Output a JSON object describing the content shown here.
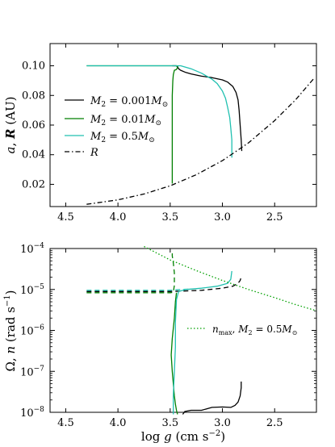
{
  "chart_data": [
    {
      "type": "line",
      "xlim": [
        4.65,
        2.1
      ],
      "ylim": [
        0.005,
        0.115
      ],
      "x_scale": "linear-reversed",
      "ylabel": "a, R (AU)",
      "x_ticks": [
        "4.5",
        "4.0",
        "3.5",
        "3.0",
        "2.5"
      ],
      "x_tick_values": [
        4.5,
        4.0,
        3.5,
        3.0,
        2.5
      ],
      "y_ticks": [
        "0.02",
        "0.04",
        "0.06",
        "0.08",
        "0.10"
      ],
      "y_tick_values": [
        0.02,
        0.04,
        0.06,
        0.08,
        0.1
      ],
      "legend_position": "center-left",
      "grid": false,
      "series": [
        {
          "name": "M2 = 0.001M⊙",
          "color": "#000000",
          "dash": "solid",
          "x": [
            3.48,
            3.46,
            3.44,
            3.43,
            3.42,
            3.4,
            3.35,
            3.3,
            3.2,
            3.1,
            3.0,
            2.95,
            2.9,
            2.87,
            2.85,
            2.84,
            2.83,
            2.82,
            2.815
          ],
          "y": [
            0.1,
            0.1,
            0.1,
            0.0995,
            0.098,
            0.097,
            0.0955,
            0.0945,
            0.093,
            0.092,
            0.0905,
            0.089,
            0.086,
            0.082,
            0.077,
            0.07,
            0.06,
            0.05,
            0.0425
          ]
        },
        {
          "name": "M2 = 0.01M⊙",
          "color": "#007f00",
          "dash": "solid",
          "x": [
            4.3,
            4.0,
            3.7,
            3.55,
            3.47,
            3.44,
            3.43,
            3.44,
            3.46,
            3.47,
            3.475,
            3.48,
            3.48,
            3.48,
            3.48
          ],
          "y": [
            0.1,
            0.1,
            0.1,
            0.1,
            0.1,
            0.1,
            0.099,
            0.0975,
            0.097,
            0.094,
            0.09,
            0.08,
            0.06,
            0.04,
            0.0205
          ]
        },
        {
          "name": "M2 = 0.5M⊙",
          "color": "#20c0b0",
          "dash": "solid",
          "x": [
            4.3,
            4.0,
            3.7,
            3.5,
            3.45,
            3.4,
            3.3,
            3.2,
            3.1,
            3.05,
            3.0,
            2.97,
            2.95,
            2.93,
            2.92,
            2.91,
            2.91
          ],
          "y": [
            0.1,
            0.1,
            0.1,
            0.1,
            0.1,
            0.1,
            0.098,
            0.095,
            0.091,
            0.088,
            0.083,
            0.078,
            0.072,
            0.065,
            0.058,
            0.05,
            0.038
          ]
        },
        {
          "name": "R",
          "color": "#000000",
          "dash": "dashdot",
          "x": [
            4.3,
            4.0,
            3.75,
            3.5,
            3.25,
            3.0,
            2.75,
            2.5,
            2.3,
            2.13
          ],
          "y": [
            0.0065,
            0.0095,
            0.0135,
            0.019,
            0.0265,
            0.036,
            0.048,
            0.063,
            0.077,
            0.091
          ]
        }
      ]
    },
    {
      "type": "line",
      "xlim": [
        4.65,
        2.1
      ],
      "ylim_log10": [
        -8.0,
        -4.0
      ],
      "y_scale": "log",
      "xlabel": "log g (cm s−2)",
      "ylabel": "Ω, n (rad s−1)",
      "x_ticks": [
        "4.5",
        "4.0",
        "3.5",
        "3.0",
        "2.5"
      ],
      "x_tick_values": [
        4.5,
        4.0,
        3.5,
        3.0,
        2.5
      ],
      "y_ticks": [
        "10−8",
        "10−7",
        "10−6",
        "10−5",
        "10−4"
      ],
      "y_tick_values_log10": [
        -8,
        -7,
        -6,
        -5,
        -4
      ],
      "legend_position": "center-right",
      "grid": false,
      "series": [
        {
          "name": "black Ω, M2 = 0.001M⊙",
          "color": "#000000",
          "dash": "solid",
          "x": [
            3.38,
            3.36,
            3.3,
            3.2,
            3.1,
            3.0,
            2.92,
            2.88,
            2.85,
            2.83,
            2.82,
            2.82
          ],
          "y_log10": [
            -8.05,
            -7.98,
            -7.95,
            -7.95,
            -7.88,
            -7.87,
            -7.88,
            -7.83,
            -7.75,
            -7.6,
            -7.4,
            -7.25
          ]
        },
        {
          "name": "black n, M2 = 0.001M⊙",
          "color": "#000000",
          "dash": "dashed",
          "x": [
            4.3,
            4.0,
            3.7,
            3.5,
            3.4,
            3.3,
            3.2,
            3.0,
            2.9,
            2.85,
            2.83,
            2.82
          ],
          "y_log10": [
            -5.05,
            -5.05,
            -5.05,
            -5.05,
            -5.04,
            -5.03,
            -5.02,
            -4.97,
            -4.92,
            -4.85,
            -4.78,
            -4.7
          ]
        },
        {
          "name": "green Ω, M2 = 0.01M⊙",
          "color": "#007f00",
          "dash": "solid",
          "x": [
            3.44,
            3.45,
            3.46,
            3.48,
            3.49,
            3.48,
            3.47,
            3.46,
            3.45,
            3.44,
            3.43
          ],
          "y_log10": [
            -5.08,
            -5.3,
            -5.7,
            -6.2,
            -6.6,
            -7.0,
            -7.3,
            -7.6,
            -7.8,
            -7.95,
            -8.05
          ]
        },
        {
          "name": "green n, M2 = 0.01M⊙",
          "color": "#007f00",
          "dash": "dashed",
          "x": [
            4.3,
            4.0,
            3.7,
            3.55,
            3.5,
            3.47,
            3.46,
            3.46,
            3.47,
            3.48,
            3.48
          ],
          "y_log10": [
            -5.08,
            -5.08,
            -5.08,
            -5.08,
            -5.08,
            -5.07,
            -4.9,
            -4.6,
            -4.35,
            -4.18,
            -4.05
          ]
        },
        {
          "name": "cyan Ω, M2 = 0.5M⊙",
          "color": "#20c0b0",
          "dash": "solid",
          "x": [
            2.91,
            2.92,
            2.95,
            3.05,
            3.2,
            3.35,
            3.42,
            3.44,
            3.45,
            3.45,
            3.46,
            3.47,
            3.47
          ],
          "y_log10": [
            -4.55,
            -4.75,
            -4.85,
            -4.92,
            -4.97,
            -5.0,
            -5.05,
            -5.25,
            -5.8,
            -6.4,
            -7.0,
            -7.6,
            -8.05
          ]
        },
        {
          "name": "cyan n, M2 = 0.5M⊙",
          "color": "#20c0b0",
          "dash": "dashed",
          "x": [
            4.3,
            4.0,
            3.7,
            3.5,
            3.45,
            3.4,
            3.3
          ],
          "y_log10": [
            -5.02,
            -5.02,
            -5.02,
            -5.02,
            -5.01,
            -5.0,
            -4.99
          ]
        },
        {
          "name": "nmax, M2 = 0.5M⊙",
          "color": "#00a000",
          "dash": "dotted",
          "x": [
            3.75,
            3.5,
            3.25,
            3.0,
            2.75,
            2.5,
            2.3,
            2.1
          ],
          "y_log10": [
            -3.95,
            -4.28,
            -4.54,
            -4.78,
            -5.0,
            -5.2,
            -5.37,
            -5.52
          ]
        }
      ]
    }
  ],
  "legend_top": {
    "m001_prefix": "M",
    "m001_sub": "2",
    "m001_value": " = 0.001",
    "m001_suffix": "M",
    "m001_sun": "⊙",
    "m01_prefix": "M",
    "m01_sub": "2",
    "m01_value": " = 0.01",
    "m01_suffix": "M",
    "m01_sun": "⊙",
    "m05_prefix": "M",
    "m05_sub": "2",
    "m05_value": " = 0.5",
    "m05_suffix": "M",
    "m05_sun": "⊙",
    "r_label": "R"
  },
  "legend_bottom": {
    "n": "n",
    "n_sub": "max",
    "rest": ", ",
    "m": "M",
    "m_sub": "2",
    "value": " = 0.5",
    "suffix": "M",
    "sun": "⊙"
  },
  "ylabel_top": {
    "a": "a",
    "comma": ", ",
    "r": "R",
    "unit": " (AU)"
  },
  "ylabel_bottom": {
    "omega": "Ω",
    "comma": ", ",
    "n": "n",
    "unit_open": " (rad s",
    "unit_exp": "−1",
    "unit_close": ")"
  },
  "xlabel_bottom": {
    "log": "log ",
    "g": "g",
    "unit_open": " (cm s",
    "unit_exp": "−2",
    "unit_close": ")"
  },
  "log_tick_labels": [
    {
      "base": "10",
      "exp": "−8"
    },
    {
      "base": "10",
      "exp": "−7"
    },
    {
      "base": "10",
      "exp": "−6"
    },
    {
      "base": "10",
      "exp": "−5"
    },
    {
      "base": "10",
      "exp": "−4"
    }
  ]
}
